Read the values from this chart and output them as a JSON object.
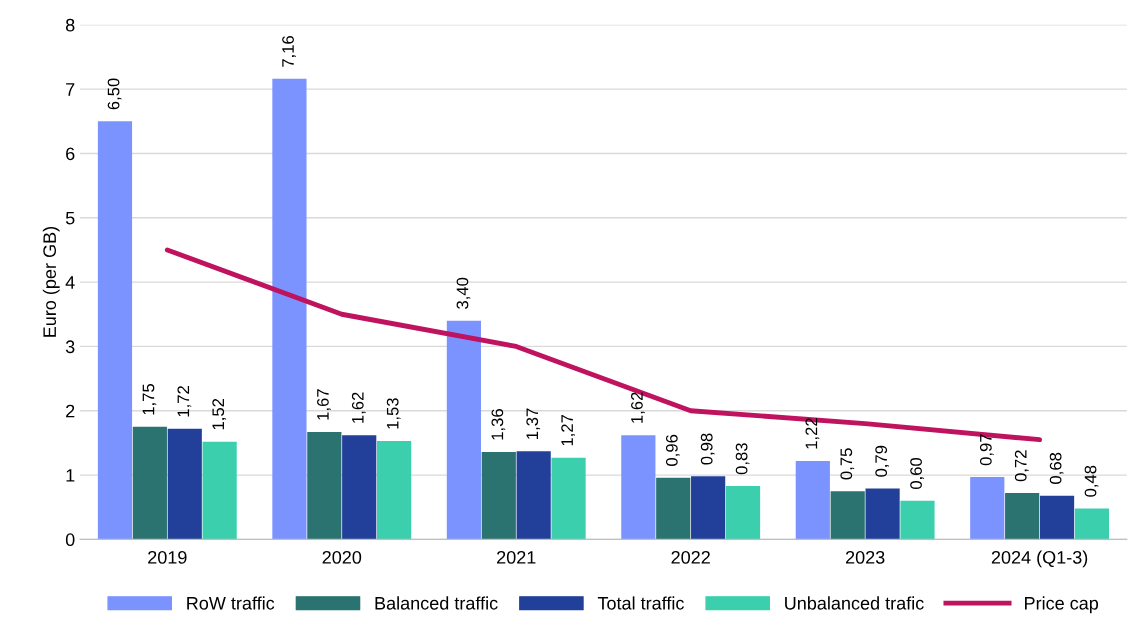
{
  "chart_data": {
    "type": "bar",
    "ylabel": "Euro (per GB)",
    "categories": [
      "2019",
      "2020",
      "2021",
      "2022",
      "2023",
      "2024 (Q1-3)"
    ],
    "series": [
      {
        "name": "RoW traffic",
        "color": "#7b93ff",
        "values": [
          6.5,
          7.16,
          3.4,
          1.62,
          1.22,
          0.97
        ],
        "value_labels": [
          "6,50",
          "7,16",
          "3,40",
          "1,62",
          "1,22",
          "0,97"
        ]
      },
      {
        "name": "Balanced traffic",
        "color": "#2a7370",
        "values": [
          1.75,
          1.67,
          1.36,
          0.96,
          0.75,
          0.72
        ],
        "value_labels": [
          "1,75",
          "1,67",
          "1,36",
          "0,96",
          "0,75",
          "0,72"
        ]
      },
      {
        "name": "Total traffic",
        "color": "#22409a",
        "values": [
          1.72,
          1.62,
          1.37,
          0.98,
          0.79,
          0.68
        ],
        "value_labels": [
          "1,72",
          "1,62",
          "1,37",
          "0,98",
          "0,79",
          "0,68"
        ]
      },
      {
        "name": "Unbalanced trafic",
        "color": "#3ccfad",
        "values": [
          1.52,
          1.53,
          1.27,
          0.83,
          0.6,
          0.48
        ],
        "value_labels": [
          "1,52",
          "1,53",
          "1,27",
          "0,83",
          "0,60",
          "0,48"
        ]
      },
      {
        "name": "Price cap",
        "type": "line",
        "color": "#c0135f",
        "values": [
          4.5,
          3.5,
          3.0,
          2.0,
          1.8,
          1.55
        ]
      }
    ],
    "ylim": [
      0,
      8
    ],
    "yticks": [
      0,
      1,
      2,
      3,
      4,
      5,
      6,
      7,
      8
    ],
    "grid": "y",
    "legend": "bottom",
    "marker": "none"
  }
}
